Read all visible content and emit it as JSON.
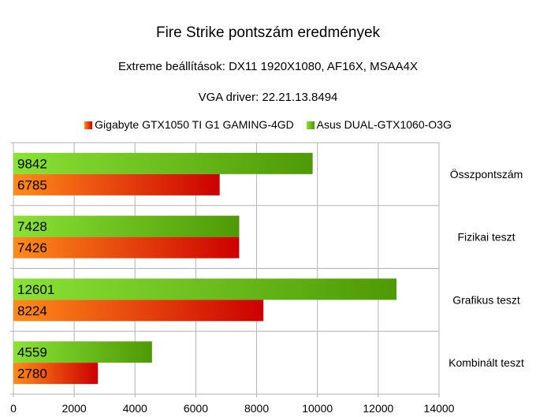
{
  "chart_data": {
    "type": "bar",
    "orientation": "horizontal",
    "title": "Fire Strike pontszám eredmények",
    "subtitle_1": "Extreme beállítások: DX11 1920X1080, AF16X, MSAA4X",
    "subtitle_2": "VGA driver: 22.21.13.8494",
    "categories": [
      "Összpontszám",
      "Fizikai teszt",
      "Grafikus teszt",
      "Kombinált teszt"
    ],
    "series": [
      {
        "name": "Asus DUAL-GTX1060-O3G",
        "values": [
          9842,
          7428,
          12601,
          4559
        ],
        "color": "#4e9a06"
      },
      {
        "name": "Gigabyte GTX1050 TI G1 GAMING-4GD",
        "values": [
          6785,
          7426,
          8224,
          2780
        ],
        "color": "#cc0000"
      }
    ],
    "legend_order": [
      "Gigabyte GTX1050 TI G1 GAMING-4GD",
      "Asus DUAL-GTX1060-O3G"
    ],
    "legend_position": "top",
    "xlim": [
      0,
      14000
    ],
    "xticks": [
      0,
      2000,
      4000,
      6000,
      8000,
      10000,
      12000,
      14000
    ],
    "grid": true,
    "category_labels_side": "right"
  }
}
